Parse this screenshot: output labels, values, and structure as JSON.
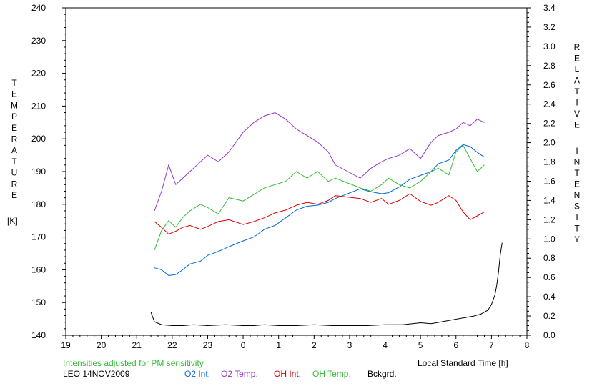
{
  "chart_data": {
    "type": "line",
    "xlabel": "Local Standard Time [h]",
    "x_ticks": [
      "19",
      "20",
      "21",
      "22",
      "23",
      "0",
      "1",
      "2",
      "3",
      "4",
      "5",
      "6",
      "7",
      "8"
    ],
    "x_range": [
      19,
      32
    ],
    "left_axis": {
      "label_letters": [
        "T",
        "E",
        "M",
        "P",
        "E",
        "R",
        "A",
        "T",
        "U",
        "R",
        "E"
      ],
      "unit": "[K]",
      "ylim": [
        140,
        240
      ],
      "ticks": [
        "140",
        "150",
        "160",
        "170",
        "180",
        "190",
        "200",
        "210",
        "220",
        "230",
        "240"
      ]
    },
    "right_axis": {
      "label_letters_1": [
        "R",
        "E",
        "L",
        "A",
        "T",
        "I",
        "V",
        "E"
      ],
      "label_letters_2": [
        "I",
        "N",
        "T",
        "E",
        "N",
        "S",
        "I",
        "T",
        "Y"
      ],
      "ylim": [
        0,
        3.4
      ],
      "ticks": [
        "0.0",
        "0.2",
        "0.4",
        "0.6",
        "0.8",
        "1.0",
        "1.2",
        "1.4",
        "1.6",
        "1.8",
        "2.0",
        "2.2",
        "2.4",
        "2.6",
        "2.8",
        "3.0",
        "3.2",
        "3.4"
      ]
    },
    "note": "Intensities adjusted for PM sensitivity",
    "station": "LEO 14NOV2009",
    "series": [
      {
        "name": "O2 Int.",
        "axis": "right",
        "color": "#0066dd",
        "x": [
          21.5,
          21.7,
          21.9,
          22.1,
          22.3,
          22.5,
          22.8,
          23.0,
          23.3,
          23.6,
          24.0,
          24.3,
          24.6,
          24.9,
          25.2,
          25.5,
          25.8,
          26.1,
          26.4,
          26.6,
          27.3,
          27.6,
          27.9,
          28.1,
          28.4,
          28.7,
          29.0,
          29.3,
          29.5,
          29.8,
          30.0,
          30.2,
          30.4,
          30.6,
          30.8
        ],
        "y": [
          0.7,
          0.68,
          0.62,
          0.63,
          0.68,
          0.74,
          0.77,
          0.83,
          0.87,
          0.92,
          0.98,
          1.02,
          1.1,
          1.14,
          1.22,
          1.3,
          1.34,
          1.35,
          1.38,
          1.42,
          1.52,
          1.49,
          1.47,
          1.48,
          1.54,
          1.62,
          1.66,
          1.7,
          1.78,
          1.82,
          1.92,
          1.98,
          1.96,
          1.9,
          1.85
        ]
      },
      {
        "name": "O2 Temp.",
        "axis": "left",
        "color": "#9933cc",
        "x": [
          21.5,
          21.7,
          21.9,
          22.1,
          22.3,
          22.5,
          22.8,
          23.0,
          23.3,
          23.6,
          24.0,
          24.3,
          24.6,
          24.9,
          25.2,
          25.5,
          25.8,
          26.1,
          26.4,
          26.6,
          27.3,
          27.6,
          27.9,
          28.1,
          28.4,
          28.7,
          29.0,
          29.3,
          29.5,
          29.8,
          30.0,
          30.2,
          30.4,
          30.6,
          30.8
        ],
        "y": [
          178,
          184,
          192,
          186,
          188,
          190,
          193,
          195,
          193,
          196,
          202,
          205,
          207,
          208,
          206,
          203,
          201,
          199,
          196,
          192,
          188,
          191,
          193,
          194,
          195,
          197,
          194,
          199,
          201,
          202,
          203,
          205,
          204,
          206,
          205
        ]
      },
      {
        "name": "OH Int.",
        "axis": "right",
        "color": "#dd0000",
        "x": [
          21.5,
          21.7,
          21.9,
          22.1,
          22.3,
          22.5,
          22.8,
          23.0,
          23.3,
          23.6,
          24.0,
          24.3,
          24.6,
          24.9,
          25.2,
          25.5,
          25.8,
          26.1,
          26.4,
          26.6,
          27.3,
          27.6,
          27.9,
          28.1,
          28.4,
          28.7,
          29.0,
          29.3,
          29.5,
          29.8,
          30.0,
          30.2,
          30.4,
          30.6,
          30.8
        ],
        "y": [
          1.18,
          1.12,
          1.05,
          1.08,
          1.12,
          1.14,
          1.1,
          1.13,
          1.18,
          1.2,
          1.15,
          1.18,
          1.22,
          1.27,
          1.3,
          1.35,
          1.38,
          1.36,
          1.4,
          1.45,
          1.42,
          1.38,
          1.42,
          1.36,
          1.4,
          1.47,
          1.39,
          1.35,
          1.38,
          1.45,
          1.4,
          1.28,
          1.2,
          1.24,
          1.28
        ]
      },
      {
        "name": "OH Temp.",
        "axis": "left",
        "color": "#33bb33",
        "x": [
          21.5,
          21.7,
          21.9,
          22.1,
          22.3,
          22.5,
          22.8,
          23.0,
          23.3,
          23.6,
          24.0,
          24.3,
          24.6,
          24.9,
          25.2,
          25.5,
          25.8,
          26.1,
          26.4,
          26.6,
          27.3,
          27.6,
          27.9,
          28.1,
          28.4,
          28.7,
          29.0,
          29.3,
          29.5,
          29.8,
          30.0,
          30.2,
          30.4,
          30.6,
          30.8
        ],
        "y": [
          166,
          172,
          175,
          173,
          176,
          178,
          180,
          179,
          177,
          182,
          181,
          183,
          185,
          186,
          187,
          190,
          188,
          190,
          187,
          188,
          185,
          184,
          186,
          188,
          186,
          185,
          187,
          190,
          191,
          189,
          196,
          198,
          194,
          190,
          192
        ]
      },
      {
        "name": "Bckgrd.",
        "axis": "right",
        "color": "#000000",
        "x": [
          21.4,
          21.5,
          21.7,
          22.0,
          22.3,
          22.6,
          23.0,
          23.5,
          24.0,
          24.3,
          24.6,
          25.0,
          25.5,
          26.0,
          26.5,
          27.0,
          27.5,
          28.0,
          28.5,
          29.0,
          29.3,
          29.6,
          29.9,
          30.2,
          30.5,
          30.7,
          30.9,
          31.0,
          31.1,
          31.15,
          31.2,
          31.25,
          31.3
        ],
        "y": [
          0.24,
          0.14,
          0.11,
          0.1,
          0.1,
          0.11,
          0.1,
          0.11,
          0.1,
          0.1,
          0.11,
          0.1,
          0.1,
          0.11,
          0.1,
          0.1,
          0.1,
          0.11,
          0.11,
          0.13,
          0.12,
          0.14,
          0.16,
          0.18,
          0.2,
          0.22,
          0.26,
          0.32,
          0.42,
          0.52,
          0.66,
          0.84,
          0.96
        ]
      }
    ]
  }
}
